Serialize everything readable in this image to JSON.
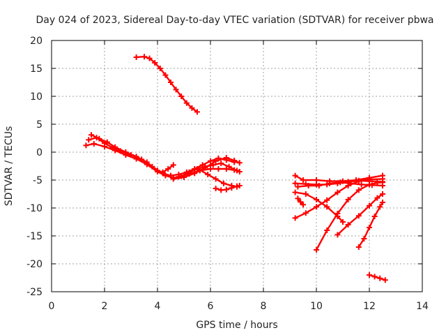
{
  "chart_data": {
    "type": "scatter",
    "title": "Day 024 of 2023, Sidereal Day-to-day VTEC variation (SDTVAR) for receiver pbwa",
    "xlabel": "GPS time / hours",
    "ylabel": "SDTVAR / TECUs",
    "xlim": [
      0,
      14
    ],
    "ylim": [
      -25,
      20
    ],
    "xticks": [
      0,
      2,
      4,
      6,
      8,
      10,
      12,
      14
    ],
    "yticks": [
      -25,
      -20,
      -15,
      -10,
      -5,
      0,
      5,
      10,
      15,
      20
    ],
    "grid": true,
    "color": "#ff0000",
    "marker": "plus",
    "series": [
      {
        "name": "s1",
        "x": [
          3.2,
          3.5,
          3.7,
          3.9,
          4.1,
          4.3,
          4.5,
          4.7,
          4.9,
          5.1,
          5.3,
          5.5
        ],
        "y": [
          17.0,
          17.1,
          16.8,
          16.0,
          15.0,
          13.8,
          12.5,
          11.2,
          10.0,
          8.8,
          7.9,
          7.2
        ]
      },
      {
        "name": "s2",
        "x": [
          1.3,
          1.6,
          2.0,
          2.4,
          2.8,
          3.2,
          3.6,
          4.0,
          4.3,
          4.6,
          4.9,
          5.2,
          5.5,
          5.8,
          6.1,
          6.4,
          6.7,
          7.0
        ],
        "y": [
          1.2,
          1.5,
          1.0,
          0.3,
          -0.5,
          -1.2,
          -2.2,
          -3.5,
          -4.2,
          -4.6,
          -4.3,
          -3.6,
          -3.0,
          -2.6,
          -2.3,
          -2.0,
          -2.6,
          -3.3
        ]
      },
      {
        "name": "s3",
        "x": [
          1.4,
          1.7,
          2.0,
          2.3,
          2.6,
          3.0,
          3.4,
          3.8,
          4.2,
          4.5,
          4.8,
          5.1,
          5.4,
          5.7,
          6.0,
          6.3,
          6.6,
          6.9
        ],
        "y": [
          2.2,
          2.6,
          1.6,
          0.8,
          0.2,
          -0.5,
          -1.3,
          -2.6,
          -3.8,
          -4.2,
          -4.0,
          -3.6,
          -3.0,
          -2.3,
          -1.6,
          -1.1,
          -1.4,
          -1.8
        ]
      },
      {
        "name": "s4",
        "x": [
          1.5,
          1.8,
          2.1,
          2.4,
          2.8,
          3.2,
          3.6,
          4.0,
          4.2,
          4.4,
          4.6
        ],
        "y": [
          3.1,
          2.4,
          1.8,
          0.9,
          0.0,
          -0.8,
          -1.8,
          -3.3,
          -3.6,
          -3.0,
          -2.3
        ]
      },
      {
        "name": "s5",
        "x": [
          4.6,
          5.0,
          5.4,
          5.8,
          6.2,
          6.6,
          6.9,
          7.1
        ],
        "y": [
          -4.8,
          -4.5,
          -3.8,
          -2.8,
          -1.6,
          -1.0,
          -1.5,
          -1.9
        ]
      },
      {
        "name": "s6",
        "x": [
          4.8,
          5.2,
          5.6,
          6.0,
          6.3,
          6.6,
          6.9,
          7.1
        ],
        "y": [
          -4.4,
          -3.9,
          -3.3,
          -3.0,
          -3.0,
          -3.0,
          -3.2,
          -3.5
        ]
      },
      {
        "name": "s7",
        "x": [
          6.2,
          6.4,
          6.6,
          6.8,
          7.0,
          7.1
        ],
        "y": [
          -6.5,
          -6.8,
          -6.7,
          -6.4,
          -6.1,
          -6.0
        ]
      },
      {
        "name": "s8",
        "x": [
          5.6,
          5.9,
          6.2,
          6.5,
          6.8,
          7.0
        ],
        "y": [
          -3.2,
          -4.0,
          -4.8,
          -5.6,
          -6.0,
          -6.2
        ]
      },
      {
        "name": "s9",
        "x": [
          9.2,
          9.5,
          10.0,
          10.5,
          11.0,
          11.5,
          12.0,
          12.5
        ],
        "y": [
          -4.2,
          -5.0,
          -5.0,
          -5.2,
          -5.2,
          -5.0,
          -4.6,
          -4.2
        ]
      },
      {
        "name": "s10",
        "x": [
          9.2,
          9.6,
          10.0,
          10.4,
          10.8,
          11.2,
          11.6,
          12.0,
          12.5
        ],
        "y": [
          -5.6,
          -5.7,
          -5.8,
          -5.8,
          -5.6,
          -5.3,
          -5.1,
          -5.2,
          -5.3
        ]
      },
      {
        "name": "s11",
        "x": [
          9.3,
          9.7,
          10.1,
          10.5,
          10.9,
          11.3,
          11.7,
          12.1,
          12.5
        ],
        "y": [
          -6.2,
          -6.0,
          -6.0,
          -5.6,
          -5.4,
          -5.6,
          -5.8,
          -5.9,
          -6.0
        ]
      },
      {
        "name": "s12",
        "x": [
          9.2,
          9.6,
          10.0,
          10.4,
          10.8,
          11.0
        ],
        "y": [
          -7.2,
          -7.5,
          -8.5,
          -9.8,
          -11.5,
          -12.5
        ]
      },
      {
        "name": "s13",
        "x": [
          9.2,
          9.6,
          10.0,
          10.4,
          10.8,
          11.2,
          11.6,
          12.0,
          12.5
        ],
        "y": [
          -11.8,
          -10.9,
          -9.8,
          -8.6,
          -7.2,
          -6.0,
          -5.2,
          -4.9,
          -4.8
        ]
      },
      {
        "name": "s14",
        "x": [
          10.0,
          10.4,
          10.8,
          11.2,
          11.6,
          12.0,
          12.3,
          12.5
        ],
        "y": [
          -17.5,
          -14.0,
          -11.0,
          -8.5,
          -6.8,
          -5.8,
          -5.5,
          -5.4
        ]
      },
      {
        "name": "s15",
        "x": [
          10.8,
          11.2,
          11.6,
          12.0,
          12.3,
          12.5
        ],
        "y": [
          -14.8,
          -13.0,
          -11.4,
          -9.6,
          -8.2,
          -7.5
        ]
      },
      {
        "name": "s16",
        "x": [
          11.6,
          11.8,
          12.0,
          12.2,
          12.4,
          12.5
        ],
        "y": [
          -17.0,
          -15.5,
          -13.5,
          -11.5,
          -9.8,
          -9.0
        ]
      },
      {
        "name": "s17",
        "x": [
          9.3,
          9.4,
          9.5
        ],
        "y": [
          -8.3,
          -8.9,
          -9.4
        ]
      },
      {
        "name": "s18",
        "x": [
          12.0,
          12.2,
          12.4,
          12.6
        ],
        "y": [
          -22.0,
          -22.3,
          -22.6,
          -22.9
        ]
      }
    ]
  }
}
